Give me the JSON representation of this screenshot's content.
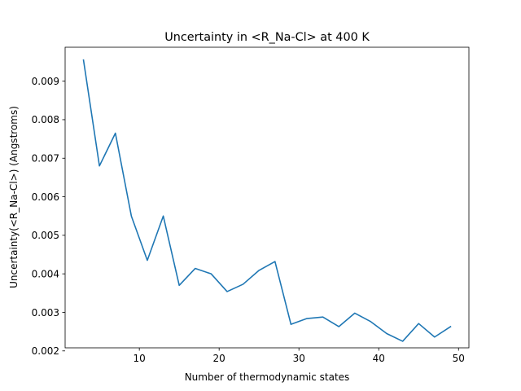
{
  "chart_data": {
    "type": "line",
    "title": "Uncertainty in <R_Na-Cl> at 400 K",
    "xlabel": "Number of thermodynamic states",
    "ylabel": "Uncertainty(<R_Na-Cl>) (Angstroms)",
    "xlim": [
      0.7,
      51.3
    ],
    "ylim": [
      0.00208,
      0.00988
    ],
    "xticks": [
      10,
      20,
      30,
      40,
      50
    ],
    "xtick_labels": [
      "10",
      "20",
      "30",
      "40",
      "50"
    ],
    "yticks": [
      0.002,
      0.003,
      0.004,
      0.005,
      0.006,
      0.007,
      0.008,
      0.009
    ],
    "ytick_labels": [
      "0.002",
      "0.003",
      "0.004",
      "0.005",
      "0.006",
      "0.007",
      "0.008",
      "0.009"
    ],
    "grid": false,
    "color": "#1f77b4",
    "series": [
      {
        "x": [
          3,
          5,
          7,
          9,
          11,
          13,
          15,
          17,
          19,
          21,
          23,
          25,
          27,
          29,
          31,
          33,
          35,
          37,
          39,
          41,
          43,
          45,
          47,
          49
        ],
        "values": [
          0.00955,
          0.0068,
          0.00765,
          0.0055,
          0.00435,
          0.0055,
          0.0037,
          0.00414,
          0.004,
          0.00354,
          0.00373,
          0.00409,
          0.00432,
          0.00269,
          0.00284,
          0.00288,
          0.00263,
          0.00298,
          0.00276,
          0.00245,
          0.00225,
          0.00271,
          0.00236,
          0.00263
        ]
      }
    ]
  }
}
